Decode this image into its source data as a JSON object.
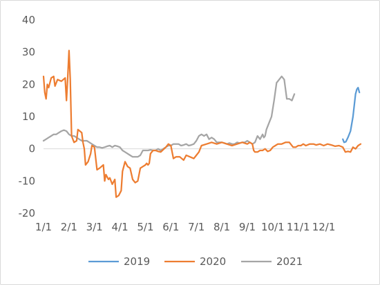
{
  "chart_data": {
    "type": "line",
    "title": "",
    "xlabel": "",
    "ylabel": "",
    "ylim": [
      -20,
      40
    ],
    "yticks": [
      -20,
      -10,
      0,
      10,
      20,
      30,
      40
    ],
    "x_tick_labels": [
      "1/1",
      "2/1",
      "3/1",
      "4/1",
      "5/1",
      "6/1",
      "7/1",
      "8/1",
      "9/1",
      "10/1",
      "11/1",
      "12/1"
    ],
    "grid": false,
    "legend_position": "bottom",
    "series": [
      {
        "name": "2019",
        "color": "#5b9bd5",
        "points": [
          [
            11.75,
            3.0
          ],
          [
            11.8,
            2.0
          ],
          [
            11.87,
            2.2
          ],
          [
            11.95,
            3.5
          ],
          [
            12.05,
            5.5
          ],
          [
            12.15,
            10.0
          ],
          [
            12.25,
            17.0
          ],
          [
            12.3,
            18.5
          ],
          [
            12.35,
            19.0
          ],
          [
            12.4,
            17.5
          ]
        ]
      },
      {
        "name": "2020",
        "color": "#ed7d31",
        "points": [
          [
            0.0,
            22.5
          ],
          [
            0.05,
            17.5
          ],
          [
            0.1,
            15.5
          ],
          [
            0.15,
            20.0
          ],
          [
            0.2,
            19.0
          ],
          [
            0.3,
            22.0
          ],
          [
            0.4,
            22.5
          ],
          [
            0.45,
            19.5
          ],
          [
            0.55,
            21.5
          ],
          [
            0.7,
            21.0
          ],
          [
            0.85,
            22.0
          ],
          [
            0.9,
            15.0
          ],
          [
            0.95,
            22.0
          ],
          [
            1.0,
            30.5
          ],
          [
            1.05,
            21.5
          ],
          [
            1.1,
            4.0
          ],
          [
            1.2,
            2.0
          ],
          [
            1.3,
            2.5
          ],
          [
            1.35,
            6.0
          ],
          [
            1.5,
            5.0
          ],
          [
            1.55,
            2.0
          ],
          [
            1.6,
            0.0
          ],
          [
            1.65,
            -5.0
          ],
          [
            1.75,
            -4.0
          ],
          [
            1.85,
            -1.5
          ],
          [
            1.9,
            1.0
          ],
          [
            2.0,
            0.5
          ],
          [
            2.1,
            -6.5
          ],
          [
            2.2,
            -6.0
          ],
          [
            2.35,
            -5.0
          ],
          [
            2.4,
            -10.0
          ],
          [
            2.45,
            -8.0
          ],
          [
            2.55,
            -9.5
          ],
          [
            2.6,
            -9.0
          ],
          [
            2.7,
            -11.0
          ],
          [
            2.8,
            -9.5
          ],
          [
            2.85,
            -15.0
          ],
          [
            2.95,
            -14.5
          ],
          [
            3.05,
            -13.0
          ],
          [
            3.1,
            -7.0
          ],
          [
            3.2,
            -4.0
          ],
          [
            3.3,
            -5.5
          ],
          [
            3.4,
            -6.0
          ],
          [
            3.5,
            -9.5
          ],
          [
            3.6,
            -10.5
          ],
          [
            3.7,
            -10.0
          ],
          [
            3.8,
            -6.0
          ],
          [
            3.9,
            -5.5
          ],
          [
            4.0,
            -5.0
          ],
          [
            4.05,
            -4.5
          ],
          [
            4.1,
            -5.0
          ],
          [
            4.15,
            -4.5
          ],
          [
            4.2,
            -1.5
          ],
          [
            4.3,
            -0.5
          ],
          [
            4.4,
            -0.5
          ],
          [
            4.5,
            -0.8
          ],
          [
            4.6,
            -1.0
          ],
          [
            4.8,
            0.5
          ],
          [
            4.9,
            1.5
          ],
          [
            5.0,
            1.0
          ],
          [
            5.1,
            -3.0
          ],
          [
            5.2,
            -2.5
          ],
          [
            5.35,
            -2.5
          ],
          [
            5.5,
            -3.5
          ],
          [
            5.6,
            -2.0
          ],
          [
            5.75,
            -2.5
          ],
          [
            5.9,
            -3.0
          ],
          [
            6.0,
            -2.0
          ],
          [
            6.1,
            -1.0
          ],
          [
            6.2,
            1.0
          ],
          [
            6.4,
            1.5
          ],
          [
            6.6,
            2.0
          ],
          [
            6.8,
            1.5
          ],
          [
            7.0,
            2.0
          ],
          [
            7.2,
            1.5
          ],
          [
            7.4,
            1.0
          ],
          [
            7.6,
            1.5
          ],
          [
            7.8,
            2.0
          ],
          [
            8.0,
            1.5
          ],
          [
            8.1,
            2.0
          ],
          [
            8.2,
            1.5
          ],
          [
            8.25,
            -0.5
          ],
          [
            8.3,
            -1.0
          ],
          [
            8.4,
            -1.0
          ],
          [
            8.5,
            -0.5
          ],
          [
            8.6,
            -0.5
          ],
          [
            8.7,
            0.0
          ],
          [
            8.8,
            -0.8
          ],
          [
            8.9,
            -0.5
          ],
          [
            9.0,
            0.5
          ],
          [
            9.1,
            1.0
          ],
          [
            9.2,
            1.5
          ],
          [
            9.35,
            1.5
          ],
          [
            9.5,
            2.0
          ],
          [
            9.65,
            2.0
          ],
          [
            9.8,
            0.5
          ],
          [
            9.9,
            0.5
          ],
          [
            10.0,
            1.0
          ],
          [
            10.1,
            1.0
          ],
          [
            10.2,
            1.5
          ],
          [
            10.3,
            1.0
          ],
          [
            10.45,
            1.5
          ],
          [
            10.6,
            1.5
          ],
          [
            10.7,
            1.2
          ],
          [
            10.85,
            1.5
          ],
          [
            11.0,
            1.0
          ],
          [
            11.15,
            1.5
          ],
          [
            11.3,
            1.2
          ],
          [
            11.45,
            0.8
          ],
          [
            11.6,
            1.0
          ],
          [
            11.75,
            0.5
          ],
          [
            11.85,
            -1.0
          ],
          [
            11.95,
            -0.8
          ],
          [
            12.05,
            -1.0
          ],
          [
            12.15,
            0.5
          ],
          [
            12.25,
            0.0
          ],
          [
            12.35,
            1.0
          ],
          [
            12.45,
            1.5
          ]
        ]
      },
      {
        "name": "2021",
        "color": "#a5a5a5",
        "points": [
          [
            0.0,
            2.5
          ],
          [
            0.1,
            3.0
          ],
          [
            0.2,
            3.5
          ],
          [
            0.3,
            4.0
          ],
          [
            0.4,
            4.5
          ],
          [
            0.5,
            4.5
          ],
          [
            0.6,
            5.0
          ],
          [
            0.7,
            5.5
          ],
          [
            0.8,
            5.8
          ],
          [
            0.9,
            5.5
          ],
          [
            1.0,
            4.5
          ],
          [
            1.1,
            4.0
          ],
          [
            1.2,
            4.0
          ],
          [
            1.3,
            3.5
          ],
          [
            1.4,
            3.0
          ],
          [
            1.5,
            2.5
          ],
          [
            1.6,
            2.5
          ],
          [
            1.7,
            2.5
          ],
          [
            1.8,
            2.0
          ],
          [
            1.9,
            1.5
          ],
          [
            2.0,
            1.0
          ],
          [
            2.1,
            0.5
          ],
          [
            2.2,
            0.5
          ],
          [
            2.3,
            0.3
          ],
          [
            2.4,
            0.5
          ],
          [
            2.5,
            0.8
          ],
          [
            2.6,
            1.0
          ],
          [
            2.7,
            0.5
          ],
          [
            2.8,
            1.0
          ],
          [
            2.9,
            0.8
          ],
          [
            3.0,
            0.5
          ],
          [
            3.1,
            -0.5
          ],
          [
            3.2,
            -1.0
          ],
          [
            3.3,
            -1.5
          ],
          [
            3.4,
            -2.0
          ],
          [
            3.5,
            -2.5
          ],
          [
            3.6,
            -2.5
          ],
          [
            3.7,
            -2.5
          ],
          [
            3.8,
            -2.0
          ],
          [
            3.9,
            -0.5
          ],
          [
            4.0,
            -0.5
          ],
          [
            4.1,
            -0.5
          ],
          [
            4.2,
            -0.3
          ],
          [
            4.3,
            -0.5
          ],
          [
            4.4,
            -0.5
          ],
          [
            4.5,
            0.0
          ],
          [
            4.6,
            -0.5
          ],
          [
            4.7,
            0.0
          ],
          [
            4.8,
            0.5
          ],
          [
            4.9,
            1.0
          ],
          [
            5.0,
            1.0
          ],
          [
            5.1,
            1.5
          ],
          [
            5.2,
            1.5
          ],
          [
            5.3,
            1.5
          ],
          [
            5.4,
            1.0
          ],
          [
            5.5,
            1.2
          ],
          [
            5.6,
            1.5
          ],
          [
            5.7,
            1.0
          ],
          [
            5.8,
            1.2
          ],
          [
            5.9,
            1.5
          ],
          [
            6.0,
            2.5
          ],
          [
            6.1,
            4.0
          ],
          [
            6.2,
            4.5
          ],
          [
            6.3,
            4.0
          ],
          [
            6.4,
            4.5
          ],
          [
            6.5,
            3.0
          ],
          [
            6.6,
            3.5
          ],
          [
            6.7,
            3.0
          ],
          [
            6.8,
            2.0
          ],
          [
            6.9,
            2.0
          ],
          [
            7.0,
            2.0
          ],
          [
            7.1,
            1.8
          ],
          [
            7.2,
            1.5
          ],
          [
            7.3,
            1.8
          ],
          [
            7.4,
            1.5
          ],
          [
            7.5,
            1.5
          ],
          [
            7.6,
            2.0
          ],
          [
            7.7,
            1.8
          ],
          [
            7.8,
            2.0
          ],
          [
            7.9,
            2.0
          ],
          [
            8.0,
            2.5
          ],
          [
            8.1,
            2.0
          ],
          [
            8.2,
            1.5
          ],
          [
            8.3,
            2.0
          ],
          [
            8.4,
            4.0
          ],
          [
            8.5,
            3.0
          ],
          [
            8.6,
            4.5
          ],
          [
            8.65,
            3.5
          ],
          [
            8.7,
            4.0
          ],
          [
            8.75,
            6.0
          ],
          [
            8.85,
            8.0
          ],
          [
            8.95,
            10.0
          ],
          [
            9.05,
            15.0
          ],
          [
            9.15,
            20.5
          ],
          [
            9.25,
            21.5
          ],
          [
            9.35,
            22.5
          ],
          [
            9.45,
            21.5
          ],
          [
            9.55,
            15.5
          ],
          [
            9.65,
            15.5
          ],
          [
            9.75,
            15.0
          ],
          [
            9.85,
            17.0
          ]
        ]
      }
    ]
  }
}
